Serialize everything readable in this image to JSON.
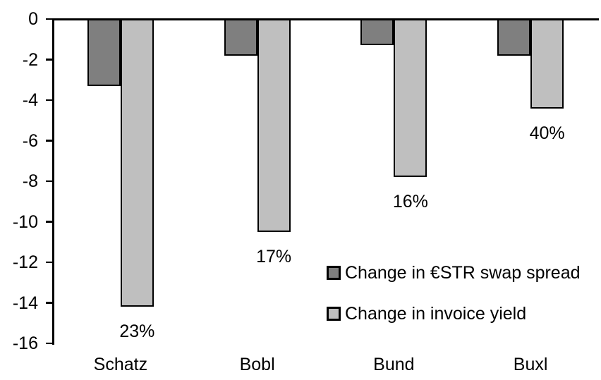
{
  "chart_data": {
    "type": "bar",
    "title": "",
    "xlabel": "",
    "ylabel": "",
    "categories": [
      "Schatz",
      "Bobl",
      "Bund",
      "Buxl"
    ],
    "series": [
      {
        "name": "Change in €STR swap spread",
        "color": "#7f7f7f",
        "values": [
          -3.3,
          -1.8,
          -1.3,
          -1.8
        ]
      },
      {
        "name": "Change in invoice yield",
        "color": "#bfbfbf",
        "values": [
          -14.2,
          -10.5,
          -7.8,
          -4.4
        ],
        "point_labels": [
          "23%",
          "17%",
          "16%",
          "40%"
        ]
      }
    ],
    "ylim": [
      -16,
      0
    ],
    "yticks": [
      0,
      -2,
      -4,
      -6,
      -8,
      -10,
      -12,
      -14,
      -16
    ],
    "grid": false,
    "legend_position": "inside-center-right",
    "axis_color": "#000000",
    "bar_border_color": "#000000",
    "background_color": "#ffffff"
  }
}
